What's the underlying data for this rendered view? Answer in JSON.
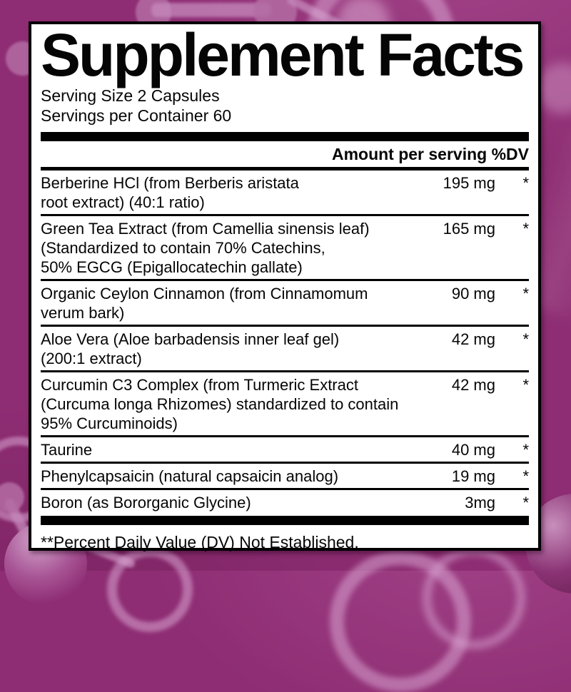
{
  "label": {
    "title": "Supplement Facts",
    "serving_size": "Serving Size 2 Capsules",
    "servings_per_container": "Servings per Container 60",
    "column_header": "Amount per serving %DV",
    "rows": [
      {
        "name_lines": [
          "Berberine HCl (from Berberis aristata",
          "root extract) (40:1 ratio)"
        ],
        "amount": "195 mg",
        "dv": "*"
      },
      {
        "name_lines": [
          "Green Tea Extract (from Camellia sinensis leaf)",
          "(Standardized to contain 70% Catechins,",
          "50% EGCG (Epigallocatechin gallate)"
        ],
        "amount": "165 mg",
        "dv": "*"
      },
      {
        "name_lines": [
          "Organic Ceylon Cinnamon (from Cinnamomum",
          "verum bark)"
        ],
        "amount": "90 mg",
        "dv": "*"
      },
      {
        "name_lines": [
          "Aloe Vera (Aloe barbadensis inner leaf gel)",
          "(200:1 extract)"
        ],
        "amount": "42 mg",
        "dv": "*"
      },
      {
        "name_lines": [
          "Curcumin C3 Complex (from Turmeric Extract",
          "(Curcuma longa Rhizomes) standardized to contain",
          "95% Curcuminoids)"
        ],
        "amount": "42 mg",
        "dv": "*"
      },
      {
        "name_lines": [
          "Taurine"
        ],
        "amount": "40 mg",
        "dv": "*"
      },
      {
        "name_lines": [
          "Phenylcapsaicin (natural capsaicin analog)"
        ],
        "amount": "19 mg",
        "dv": "*"
      },
      {
        "name_lines": [
          "Boron (as Bororganic Glycine)"
        ],
        "amount": "3mg",
        "dv": "*"
      }
    ],
    "footnote": "**Percent Daily Value (DV) Not Established."
  },
  "colors": {
    "background": "#8E2D73",
    "molecule": "#B46CA4",
    "panel": "#FFFFFF",
    "text": "#050505"
  }
}
